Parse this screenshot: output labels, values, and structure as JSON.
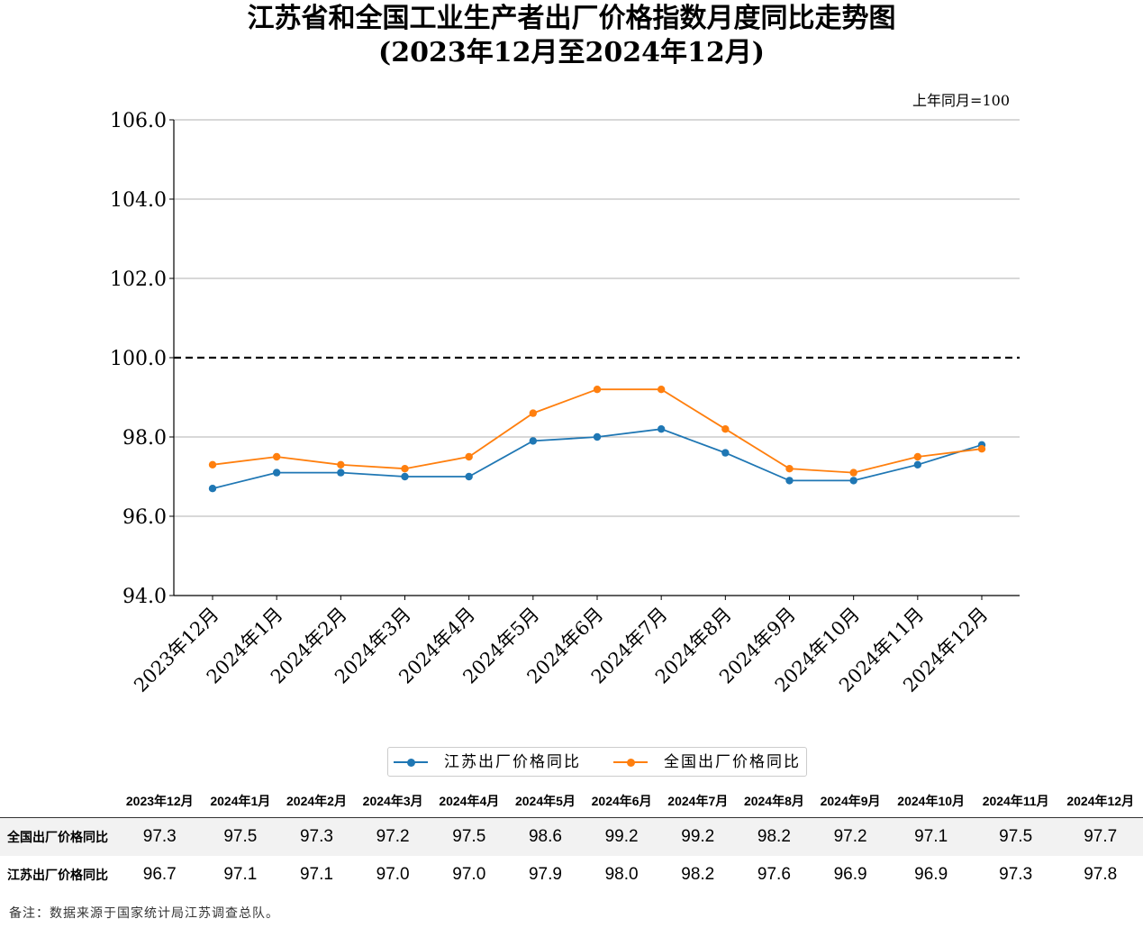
{
  "title": {
    "line1": "江苏省和全国工业生产者出厂价格指数月度同比走势图",
    "line2": "(2023年12月至2024年12月)"
  },
  "unit_label": "上年同月=100",
  "colors": {
    "jiangsu": "#1f77b4",
    "national": "#ff7f0e",
    "grid": "#b0b0b0",
    "reference": "#000000"
  },
  "chart_data": {
    "type": "line",
    "categories": [
      "2023年12月",
      "2024年1月",
      "2024年2月",
      "2024年3月",
      "2024年4月",
      "2024年5月",
      "2024年6月",
      "2024年7月",
      "2024年8月",
      "2024年9月",
      "2024年10月",
      "2024年11月",
      "2024年12月"
    ],
    "series": [
      {
        "name": "江苏出厂价格同比",
        "color": "#1f77b4",
        "values": [
          96.7,
          97.1,
          97.1,
          97.0,
          97.0,
          97.9,
          98.0,
          98.2,
          97.6,
          96.9,
          96.9,
          97.3,
          97.8
        ]
      },
      {
        "name": "全国出厂价格同比",
        "color": "#ff7f0e",
        "values": [
          97.3,
          97.5,
          97.3,
          97.2,
          97.5,
          98.6,
          99.2,
          99.2,
          98.2,
          97.2,
          97.1,
          97.5,
          97.7
        ]
      }
    ],
    "ylim": [
      94.0,
      106.0
    ],
    "yticks": [
      "94.0",
      "96.0",
      "98.0",
      "100.0",
      "102.0",
      "104.0",
      "106.0"
    ],
    "reference_line": 100.0,
    "grid": "horizontal",
    "legend_position": "bottom-center"
  },
  "table": {
    "columns": [
      "2023年12月",
      "2024年1月",
      "2024年2月",
      "2024年3月",
      "2024年4月",
      "2024年5月",
      "2024年6月",
      "2024年7月",
      "2024年8月",
      "2024年9月",
      "2024年10月",
      "2024年11月",
      "2024年12月"
    ],
    "rows": [
      {
        "label": "全国出厂价格同比",
        "values": [
          "97.3",
          "97.5",
          "97.3",
          "97.2",
          "97.5",
          "98.6",
          "99.2",
          "99.2",
          "98.2",
          "97.2",
          "97.1",
          "97.5",
          "97.7"
        ]
      },
      {
        "label": "江苏出厂价格同比",
        "values": [
          "96.7",
          "97.1",
          "97.1",
          "97.0",
          "97.0",
          "97.9",
          "98.0",
          "98.2",
          "97.6",
          "96.9",
          "96.9",
          "97.3",
          "97.8"
        ]
      }
    ]
  },
  "note": "备注：数据来源于国家统计局江苏调查总队。"
}
